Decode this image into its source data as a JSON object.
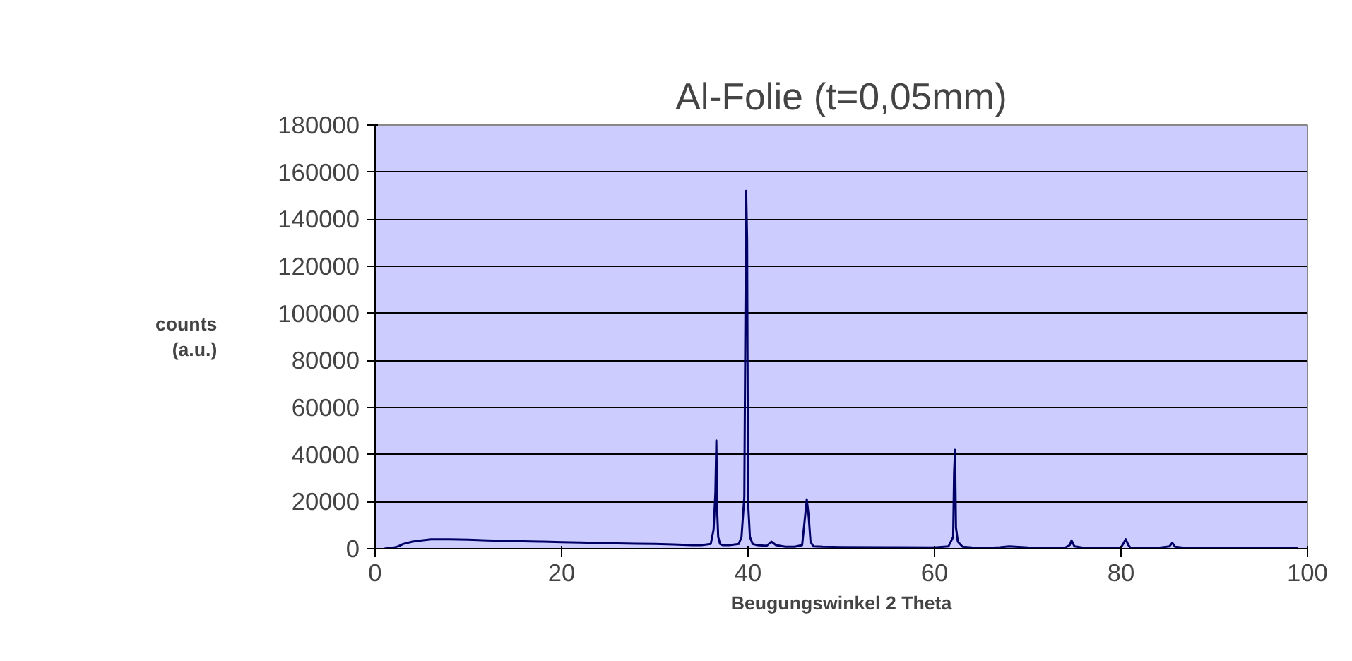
{
  "chart_data": {
    "type": "line",
    "title": "Al-Folie (t=0,05mm)",
    "xlabel": "Beugungswinkel 2 Theta",
    "ylabel": "counts\n(a.u.)",
    "xlim": [
      0,
      100
    ],
    "xticks": [
      0,
      20,
      40,
      60,
      80,
      100
    ],
    "ylim": [
      0,
      180000
    ],
    "yticks": [
      0,
      20000,
      40000,
      60000,
      80000,
      100000,
      120000,
      140000,
      160000,
      180000
    ],
    "grid": "y",
    "series": [
      {
        "color": "#000066",
        "x": [
          1,
          2,
          2.5,
          3,
          4,
          5,
          6,
          8,
          10,
          12,
          15,
          18,
          20,
          22,
          25,
          28,
          30,
          32,
          34,
          35,
          36,
          36.3,
          36.5,
          36.6,
          36.7,
          36.8,
          37,
          37.3,
          38,
          39,
          39.3,
          39.6,
          39.8,
          39.9,
          40.0,
          40.2,
          40.5,
          41,
          42,
          42.5,
          43,
          44,
          45,
          45.8,
          46.1,
          46.3,
          46.5,
          46.7,
          47,
          48,
          50,
          55,
          60,
          61.5,
          62,
          62.1,
          62.2,
          62.3,
          62.5,
          63,
          64,
          66,
          67,
          68,
          70,
          72,
          74,
          74.5,
          74.7,
          75,
          76,
          78,
          80,
          80.3,
          80.5,
          80.8,
          81,
          82,
          84,
          85.2,
          85.5,
          85.8,
          87,
          90,
          95,
          99
        ],
        "values": [
          0,
          500,
          1000,
          2000,
          3000,
          3500,
          4000,
          4000,
          3800,
          3500,
          3200,
          3000,
          2800,
          2600,
          2300,
          2100,
          2000,
          1800,
          1500,
          1500,
          2000,
          8000,
          24000,
          46000,
          15000,
          5000,
          2000,
          1500,
          1500,
          2000,
          5000,
          22000,
          152000,
          131000,
          20000,
          5000,
          2000,
          1500,
          1200,
          3000,
          1500,
          800,
          800,
          1500,
          13000,
          21000,
          14000,
          3000,
          1000,
          800,
          700,
          600,
          500,
          1000,
          5000,
          32000,
          42000,
          9000,
          3000,
          800,
          500,
          400,
          600,
          1000,
          500,
          400,
          400,
          1500,
          3500,
          1000,
          400,
          400,
          500,
          2500,
          4000,
          1500,
          500,
          400,
          400,
          1000,
          2500,
          800,
          300,
          300,
          300,
          300
        ]
      }
    ]
  }
}
